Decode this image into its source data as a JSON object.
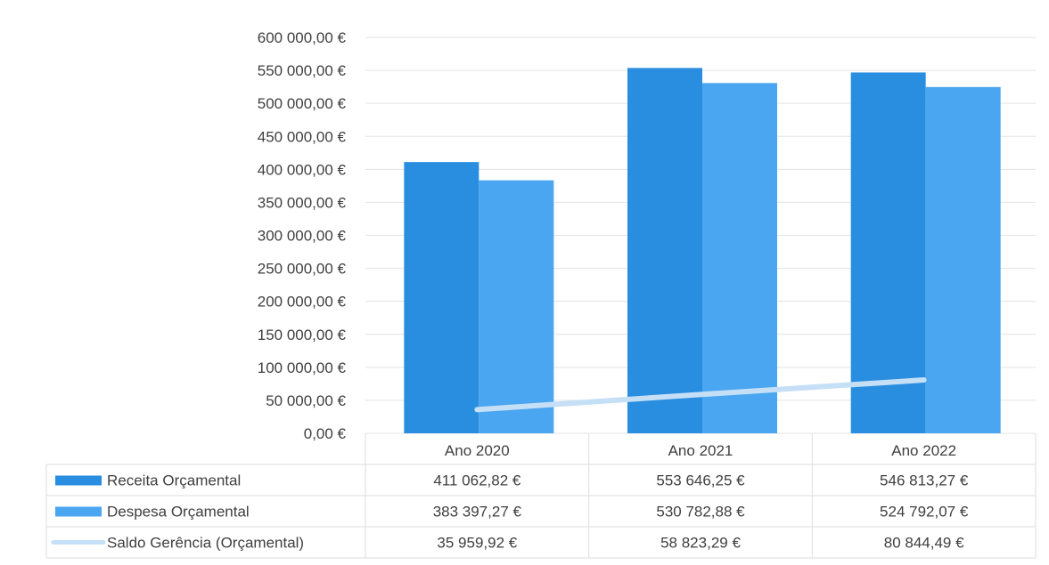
{
  "chart_data": {
    "type": "bar",
    "title": "",
    "xlabel": "",
    "ylabel": "",
    "ylim": [
      0,
      600000
    ],
    "yticks": [
      "0,00 €",
      "50 000,00 €",
      "100 000,00 €",
      "150 000,00 €",
      "200 000,00 €",
      "250 000,00 €",
      "300 000,00 €",
      "350 000,00 €",
      "400 000,00 €",
      "450 000,00 €",
      "500 000,00 €",
      "550 000,00 €",
      "600 000,00 €"
    ],
    "ytick_values": [
      0,
      50000,
      100000,
      150000,
      200000,
      250000,
      300000,
      350000,
      400000,
      450000,
      500000,
      550000,
      600000
    ],
    "categories": [
      "Ano 2020",
      "Ano 2021",
      "Ano 2022"
    ],
    "grid": true,
    "legend": "data-table",
    "series": [
      {
        "name": "Receita Orçamental",
        "kind": "bar",
        "color": "#2a8ee0",
        "values": [
          411062.82,
          553646.25,
          546813.27
        ],
        "labels": [
          "411 062,82 €",
          "553 646,25 €",
          "546 813,27 €"
        ]
      },
      {
        "name": "Despesa Orçamental",
        "kind": "bar",
        "color": "#4aa6f0",
        "values": [
          383397.27,
          530782.88,
          524792.07
        ],
        "labels": [
          "383 397,27 €",
          "530 782,88 €",
          "524 792,07 €"
        ]
      },
      {
        "name": "Saldo Gerência (Orçamental)",
        "kind": "line",
        "color": "#c5dff7",
        "values": [
          35959.92,
          58823.29,
          80844.49
        ],
        "labels": [
          "35 959,92 €",
          "58 823,29 €",
          "80 844,49 €"
        ]
      }
    ]
  }
}
